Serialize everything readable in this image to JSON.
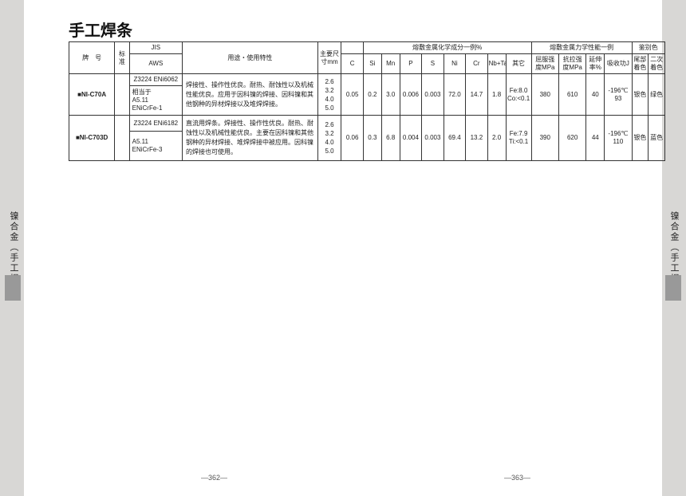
{
  "title": "手工焊条",
  "side_label": "镍合金（手工焊条）",
  "page_left": "—362—",
  "page_right": "—363—",
  "header": {
    "grade": "牌　号",
    "std": "标准",
    "std_jis": "JIS",
    "std_aws": "AWS",
    "usage": "用途・使用特性",
    "size": "主要尺寸mm",
    "chem": "熔敷金属化学成分一例%",
    "mech": "熔敷金属力学性能一例",
    "ident": "鉴别色",
    "c": "C",
    "si": "Si",
    "mn": "Mn",
    "p": "P",
    "s": "S",
    "ni": "Ni",
    "cr": "Cr",
    "nbta": "Nb+Ta",
    "other": "其它",
    "ys": "屈服强度MPa",
    "ts": "抗拉强度MPa",
    "el": "延伸率%",
    "impact": "吸收功J",
    "endcolor": "尾部着色",
    "seccolor": "二次着色"
  },
  "row1": {
    "grade": "■NI-C70A",
    "jis": "Z3224 ENi6062",
    "aws_pre": "相当于",
    "aws1": "A5.11",
    "aws2": "ENiCrFe-1",
    "usage": "焊接性、操作性优良。耐热、耐蚀性以及机械性能优良。应用于因科镍的焊接、因科镍和其他钢种的异材焊接以及堆焊焊接。",
    "sizes": "2.6\n3.2\n4.0\n5.0",
    "c": "0.05",
    "si": "0.2",
    "mn": "3.0",
    "p": "0.006",
    "s": "0.003",
    "ni": "72.0",
    "cr": "14.7",
    "nbta": "1.8",
    "other": "Fe:8.0 Co:<0.1",
    "ys": "380",
    "ts": "610",
    "el": "40",
    "impact": "-196℃\n93",
    "endcolor": "银色",
    "seccolor": "绿色"
  },
  "row2": {
    "grade": "■NI-C703D",
    "jis": "Z3224 ENi6182",
    "aws1": "A5.11",
    "aws2": "ENiCrFe-3",
    "usage": "直流用焊条。焊接性、操作性优良。耐热、耐蚀性以及机械性能优良。主要在因科镍和其他钢种的异材焊接、堆焊焊接中被应用。因科镍的焊接也可使用。",
    "sizes": "2.6\n3.2\n4.0\n5.0",
    "c": "0.06",
    "si": "0.3",
    "mn": "6.8",
    "p": "0.004",
    "s": "0.003",
    "ni": "69.4",
    "cr": "13.2",
    "nbta": "2.0",
    "other": "Fe:7.9 Ti:<0.1",
    "ys": "390",
    "ts": "620",
    "el": "44",
    "impact": "-196℃\n110",
    "endcolor": "银色",
    "seccolor": "蓝色"
  }
}
